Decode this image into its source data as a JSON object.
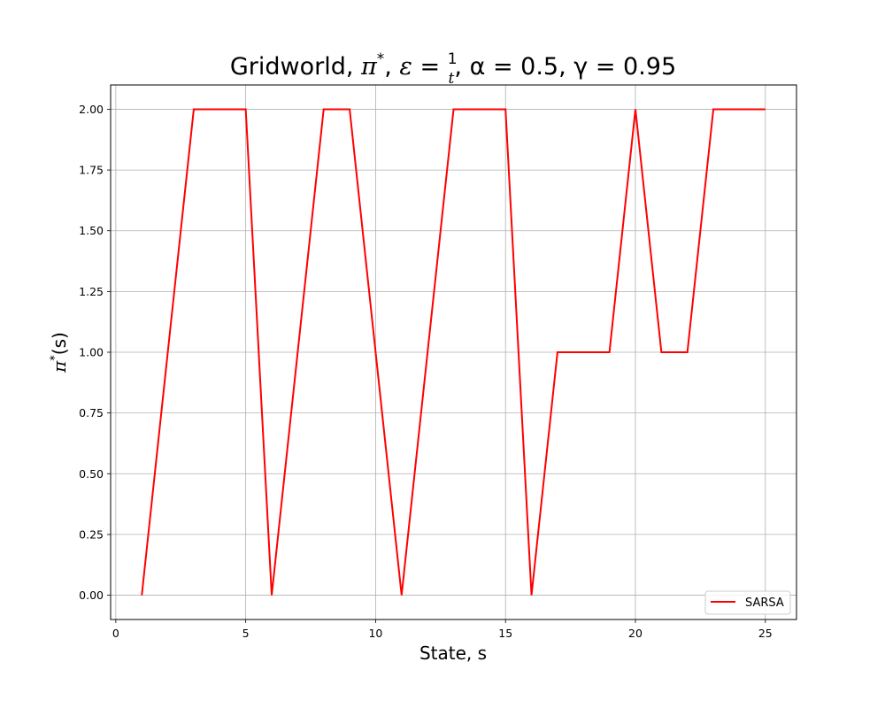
{
  "chart_data": {
    "type": "line",
    "title_parts": {
      "lead": "Gridworld, ",
      "pi": "π",
      "star": "*",
      "sep1": ", ",
      "epsilon": "ε",
      "eq": " = ",
      "frac_num": "1",
      "frac_den": "t",
      "sep2": ", ",
      "alpha_part": "α = 0.5",
      "sep3": ", ",
      "gamma_part": "γ = 0.95"
    },
    "xlabel": "State, s",
    "ylabel_parts": {
      "pi": "π",
      "star": "*",
      "arg": "(s)"
    },
    "xlim": [
      -0.2,
      26.2
    ],
    "ylim": [
      -0.1,
      2.1
    ],
    "xticks": [
      0,
      5,
      10,
      15,
      20,
      25
    ],
    "yticks": [
      0.0,
      0.25,
      0.5,
      0.75,
      1.0,
      1.25,
      1.5,
      1.75,
      2.0
    ],
    "xtick_labels": [
      "0",
      "5",
      "10",
      "15",
      "20",
      "25"
    ],
    "ytick_labels": [
      "0.00",
      "0.25",
      "0.50",
      "0.75",
      "1.00",
      "1.25",
      "1.50",
      "1.75",
      "2.00"
    ],
    "grid": true,
    "legend_position": "lower-right",
    "series": [
      {
        "name": "SARSA",
        "color": "#ff0000",
        "x": [
          1,
          2,
          3,
          4,
          5,
          6,
          7,
          8,
          9,
          10,
          11,
          12,
          13,
          14,
          15,
          16,
          17,
          18,
          19,
          20,
          21,
          22,
          23,
          24,
          25
        ],
        "y": [
          0,
          1,
          2,
          2,
          2,
          0,
          1,
          2,
          2,
          1,
          0,
          1,
          2,
          2,
          2,
          0,
          1,
          1,
          1,
          2,
          1,
          1,
          2,
          2,
          2
        ]
      }
    ]
  }
}
